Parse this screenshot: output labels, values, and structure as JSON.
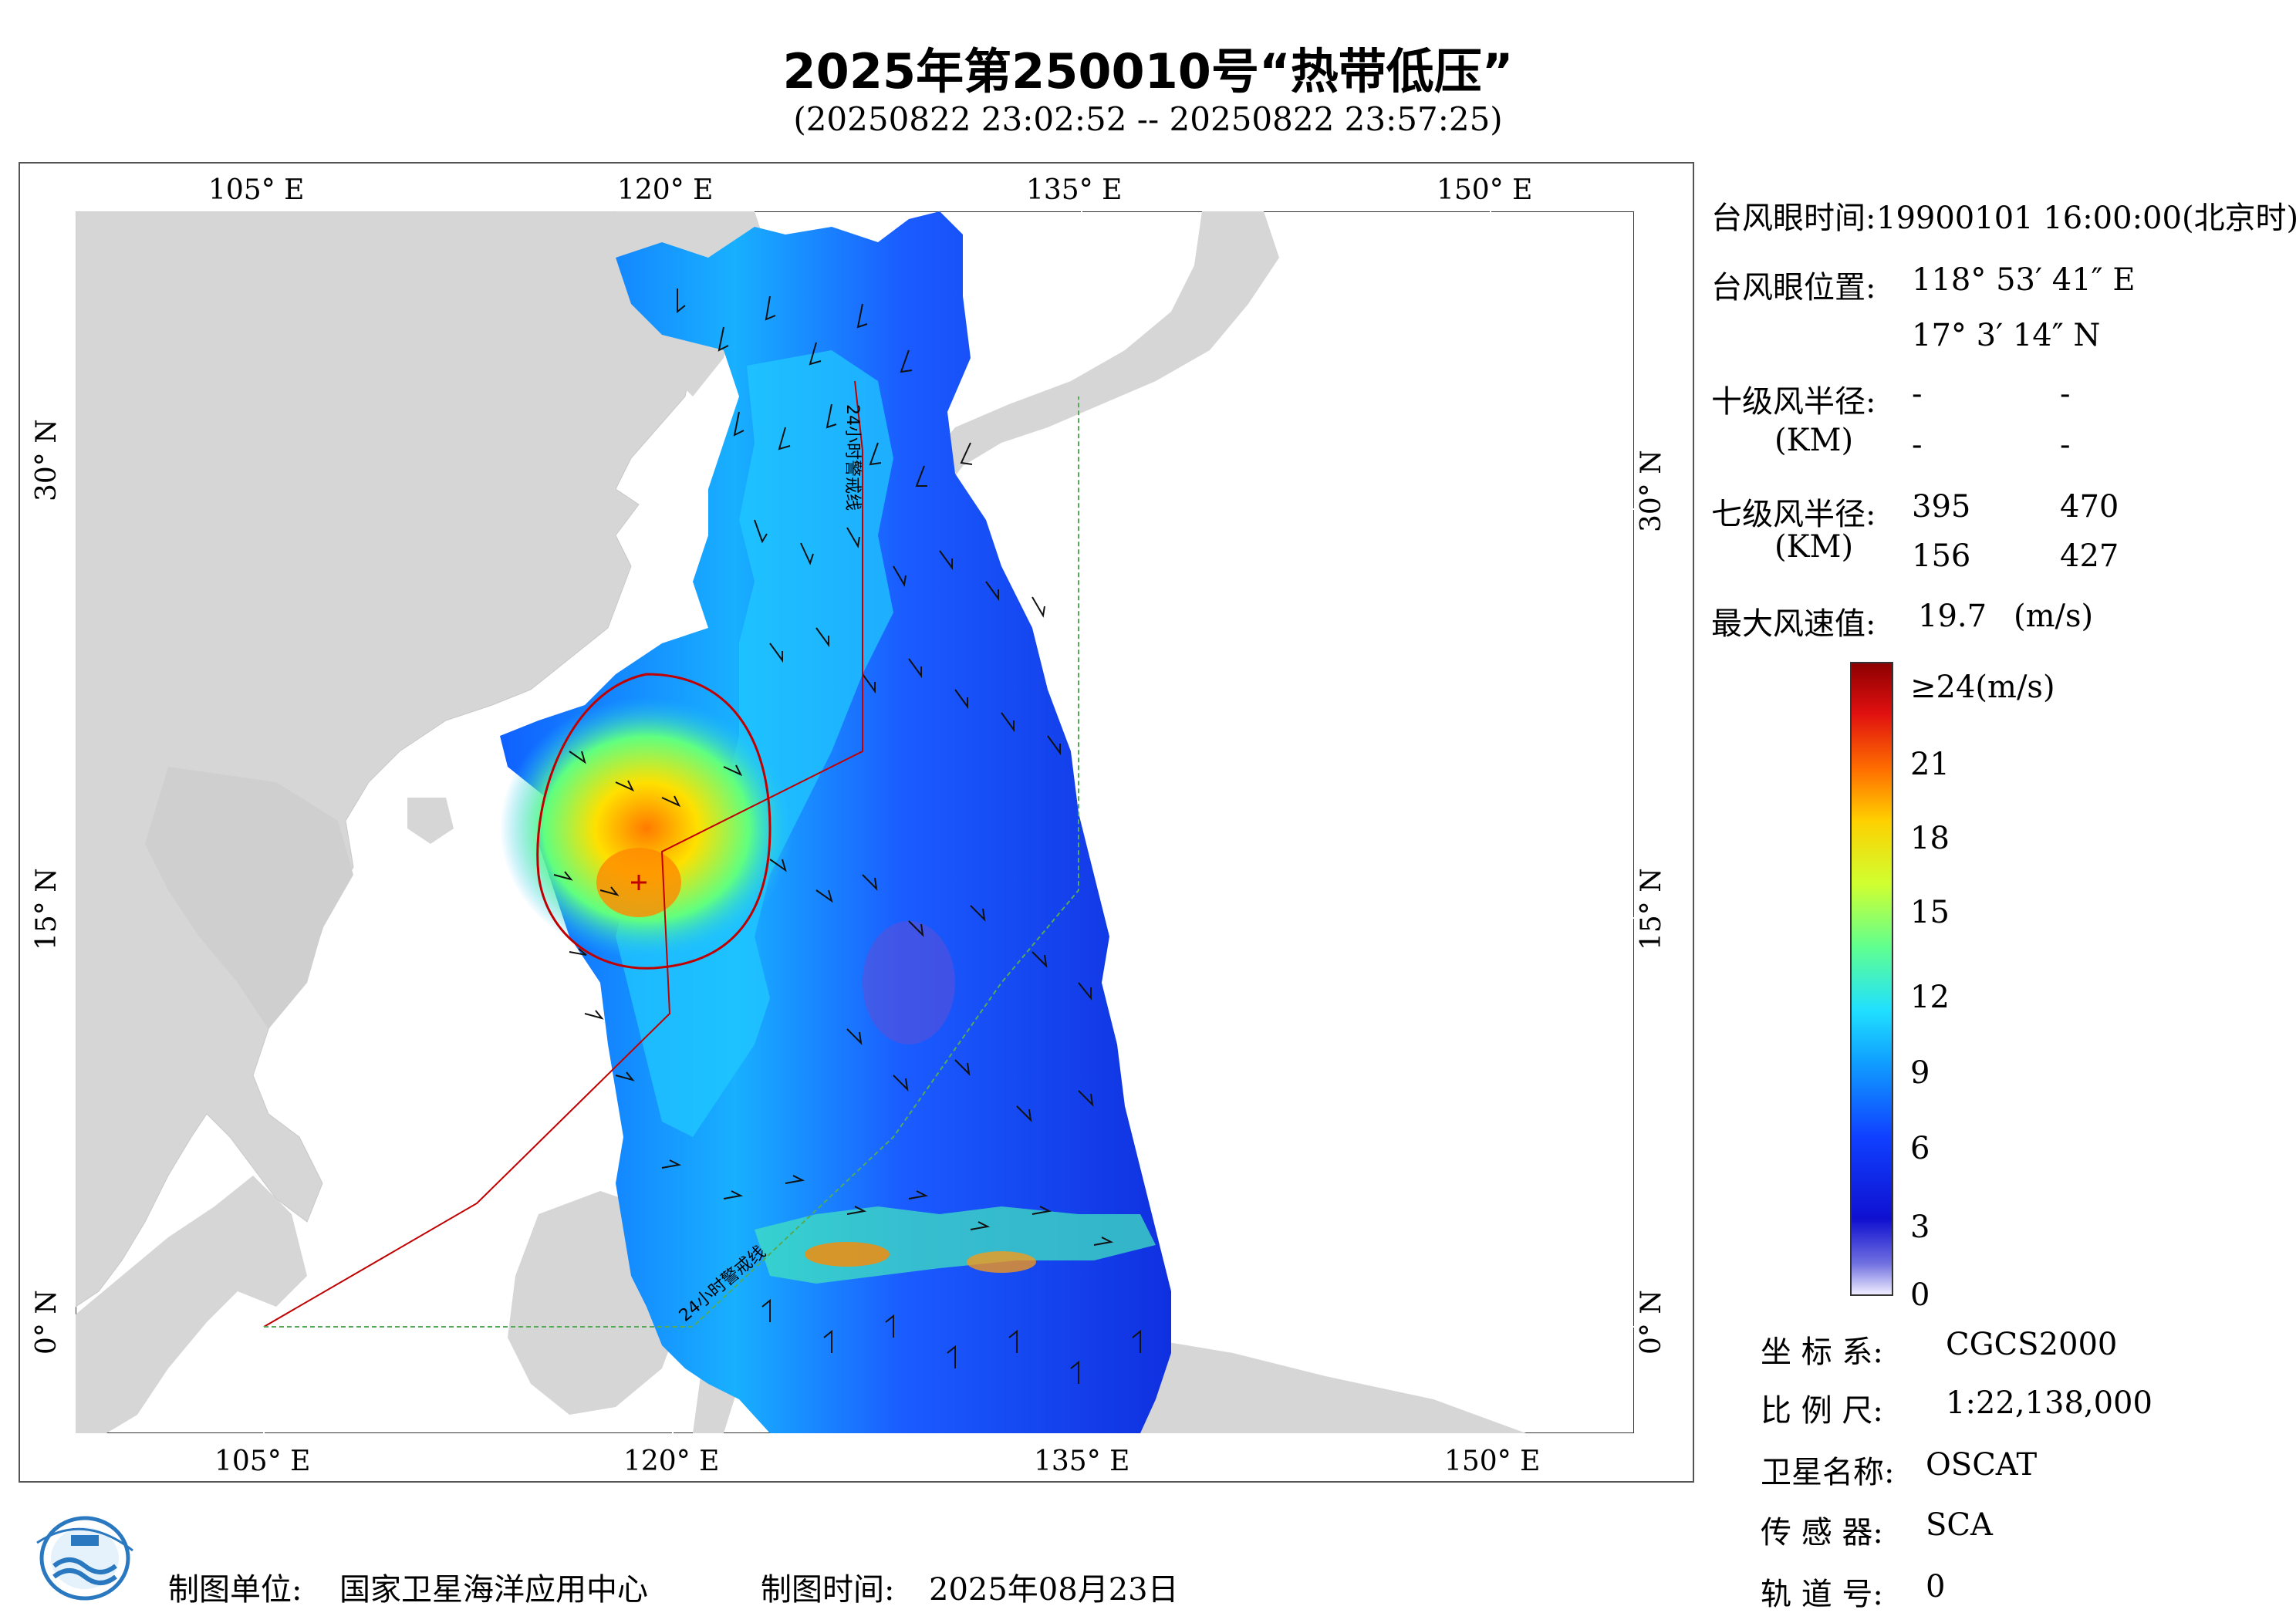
{
  "title": "2025年第250010号“热带低压”",
  "subtitle": "(20250822 23:02:52 -- 20250822 23:57:25)",
  "map": {
    "lon_ticks": [
      "105° E",
      "120° E",
      "135° E",
      "150° E"
    ],
    "lat_ticks": [
      "30° N",
      "15° N",
      "0° N"
    ],
    "line_label_upper": "24小时警戒线",
    "line_label_lower": "24小时警戒线",
    "colors": {
      "land": "#d6d6d6",
      "ocean": "#ffffff",
      "warning_line": "#c00000",
      "alert_line": "#55aa55"
    }
  },
  "info": {
    "eye_time_label": "台风眼时间:",
    "eye_time_value": "19900101 16:00:00(北京时)",
    "eye_pos_label": "台风眼位置:",
    "eye_lon": "118° 53′ 41″ E",
    "eye_lat": "17° 3′ 14″ N",
    "r10_label": "十级风半径:",
    "r10_unit": "(KM)",
    "r10_values": [
      "-",
      "-",
      "-",
      "-"
    ],
    "r7_label": "七级风半径:",
    "r7_unit": "(KM)",
    "r7_values": [
      "395",
      "470",
      "156",
      "427"
    ],
    "max_wind_label": "最大风速值:",
    "max_wind_value": "19.7",
    "max_wind_unit": "(m/s)"
  },
  "colorbar": {
    "labels": [
      "≥24(m/s)",
      "21",
      "18",
      "15",
      "12",
      "9",
      "6",
      "3",
      "0"
    ],
    "colors": [
      "#f2f0ff",
      "#7070e0",
      "#1010d0",
      "#1040ff",
      "#10a0ff",
      "#20e0ff",
      "#60ff90",
      "#d0ff30",
      "#ffd000",
      "#ff7000",
      "#e01010",
      "#8c0000"
    ]
  },
  "meta": {
    "crs_label": "坐 标 系:",
    "crs_value": "CGCS2000",
    "scale_label": "比 例 尺:",
    "scale_value": "1:22,138,000",
    "sat_label": "卫星名称:",
    "sat_value": "OSCAT",
    "sensor_label": "传 感 器:",
    "sensor_value": "SCA",
    "orbit_label": "轨 道 号:",
    "orbit_value": "0"
  },
  "footer": {
    "unit_label": "制图单位:",
    "unit_value": "国家卫星海洋应用中心",
    "time_label": "制图时间:",
    "time_value": "2025年08月23日"
  }
}
